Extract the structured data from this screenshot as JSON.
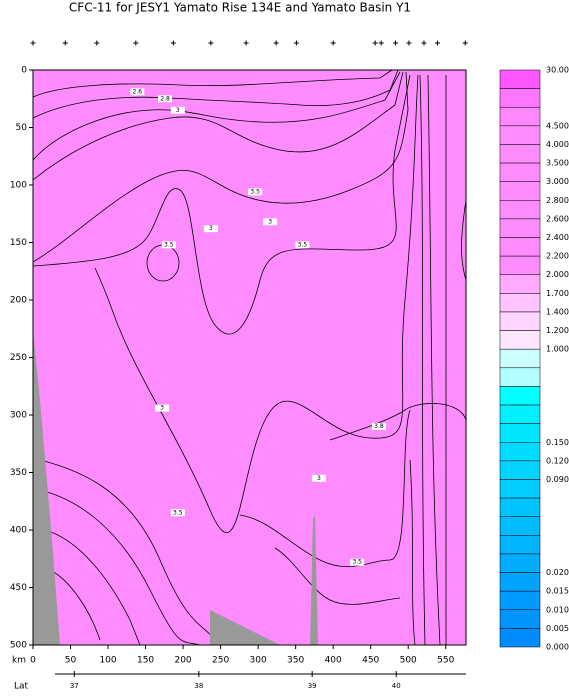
{
  "chart_data": {
    "type": "contour",
    "title": "CFC-11 for JESY1 Yamato Rise 134E and Yamato Basin Y1",
    "x_label": "km",
    "xlim": [
      0,
      577
    ],
    "xticks": [
      0,
      50,
      100,
      150,
      200,
      250,
      300,
      350,
      400,
      450,
      500,
      550
    ],
    "ylim": [
      0,
      500
    ],
    "yticks": [
      0,
      50,
      100,
      150,
      200,
      250,
      300,
      350,
      400,
      450,
      500
    ],
    "stations_km": [
      0,
      43,
      85,
      137,
      187,
      237,
      284,
      324,
      351,
      400,
      456,
      464,
      483,
      501,
      521,
      539,
      576
    ],
    "lat_axis": {
      "label": "Lat",
      "ticks": [
        37,
        38,
        39,
        40
      ],
      "positions_km": [
        55,
        221,
        372,
        484
      ]
    },
    "contour_labels": {
      "x": [
        139,
        176,
        193,
        296,
        237,
        316,
        359,
        181,
        172,
        461,
        381,
        193,
        432
      ],
      "y": [
        19,
        25,
        35,
        106,
        138,
        132,
        152,
        152,
        294,
        310,
        355,
        385,
        428
      ],
      "values": [
        2.6,
        2.8,
        3,
        3.5,
        3,
        3,
        3.5,
        3.5,
        3,
        3.8,
        3,
        3.5,
        3.5
      ]
    },
    "colorbar": {
      "labels": [
        "30.000",
        null,
        null,
        "4.500",
        "4.000",
        "3.500",
        "3.000",
        "2.800",
        "2.600",
        "2.400",
        "2.200",
        "2.000",
        "1.700",
        "1.400",
        "1.200",
        "1.000",
        null,
        null,
        null,
        null,
        "0.150",
        "0.120",
        "0.090",
        null,
        null,
        null,
        null,
        "0.020",
        "0.015",
        "0.010",
        "0.005",
        "0.000"
      ],
      "colors": [
        "#ff55ff",
        "#ff77ff",
        "#ff88ff",
        "#ff8cff",
        "#ff8cff",
        "#ff8cff",
        "#ff8cff",
        "#ff8cff",
        "#ff8cff",
        "#ff8cff",
        "#ff8cff",
        "#ffaaff",
        "#ffc4ff",
        "#ffd4ff",
        "#ffe6ff",
        "#ccffff",
        "#b3ffff",
        "#00ffff",
        "#00f0ff",
        "#00e6ff",
        "#00dcff",
        "#00d4ff",
        "#00ccff",
        "#00c4ff",
        "#00bcff",
        "#00b4ff",
        "#00acff",
        "#00a4ff",
        "#009cff",
        "#0094ff",
        "#008cff"
      ]
    }
  }
}
